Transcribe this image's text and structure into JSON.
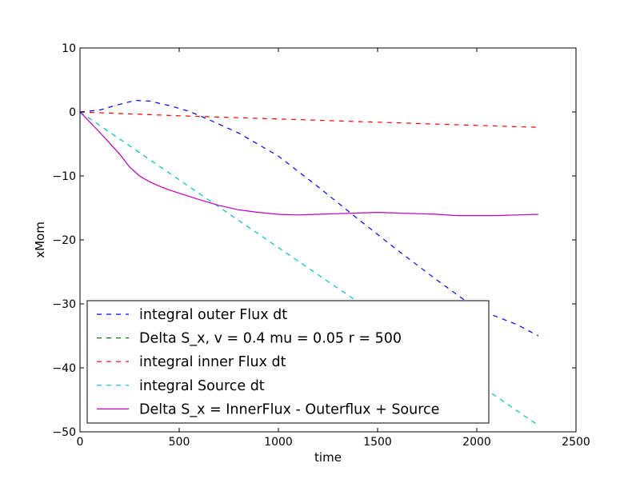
{
  "chart_data": {
    "type": "line",
    "title": "",
    "xlabel": "time",
    "ylabel": "xMom",
    "xlim": [
      0,
      2500
    ],
    "ylim": [
      -50,
      10
    ],
    "x_ticks": [
      0,
      500,
      1000,
      1500,
      2000,
      2500
    ],
    "y_ticks": [
      10,
      0,
      -10,
      -20,
      -30,
      -40,
      -50
    ],
    "x_tick_labels": [
      "0",
      "500",
      "1000",
      "1500",
      "2000",
      "2500"
    ],
    "y_tick_labels": [
      "10",
      "0",
      "−10",
      "−20",
      "−30",
      "−40",
      "−50"
    ],
    "grid": false,
    "legend_position": "lower-left",
    "series": [
      {
        "name": "integral outer Flux dt",
        "color": "#0000ff",
        "dash": "dashed",
        "x": [
          0,
          100,
          200,
          280,
          350,
          450,
          550,
          650,
          800,
          1000,
          1200,
          1400,
          1600,
          1800,
          2000,
          2200,
          2310
        ],
        "y": [
          0,
          0.3,
          1.2,
          1.8,
          1.7,
          1.0,
          0.1,
          -1.2,
          -3.3,
          -6.9,
          -11.7,
          -16.7,
          -21.6,
          -26.3,
          -30.8,
          -33.2,
          -35.0
        ]
      },
      {
        "name": "Delta S_x, v = 0.4 mu = 0.05 r = 500",
        "color": "#008000",
        "dash": "dashed",
        "x": [],
        "y": []
      },
      {
        "name": "integral inner Flux dt",
        "color": "#ff0000",
        "dash": "dashed",
        "x": [
          0,
          500,
          1000,
          1500,
          2000,
          2310
        ],
        "y": [
          0,
          -0.6,
          -1.1,
          -1.6,
          -2.1,
          -2.4
        ]
      },
      {
        "name": "integral Source dt",
        "color": "#00bfbf",
        "dash": "dashed",
        "x": [
          0,
          500,
          1000,
          1500,
          2000,
          2310
        ],
        "y": [
          0,
          -10.6,
          -21.2,
          -31.8,
          -42.4,
          -49.0
        ]
      },
      {
        "name": "Delta S_x = InnerFlux - Outerflux + Source",
        "color": "#bf00bf",
        "dash": "solid",
        "x": [
          0,
          50,
          100,
          150,
          200,
          250,
          300,
          350,
          400,
          450,
          500,
          600,
          700,
          800,
          900,
          1000,
          1100,
          1200,
          1300,
          1400,
          1500,
          1600,
          1700,
          1800,
          1900,
          2000,
          2100,
          2200,
          2310
        ],
        "y": [
          0,
          -1.6,
          -3.2,
          -4.9,
          -6.6,
          -8.6,
          -10.0,
          -10.9,
          -11.6,
          -12.2,
          -12.7,
          -13.7,
          -14.6,
          -15.3,
          -15.7,
          -16.0,
          -16.1,
          -16.0,
          -15.9,
          -15.8,
          -15.7,
          -15.8,
          -15.9,
          -16.0,
          -16.2,
          -16.2,
          -16.2,
          -16.1,
          -16.0
        ]
      }
    ]
  }
}
